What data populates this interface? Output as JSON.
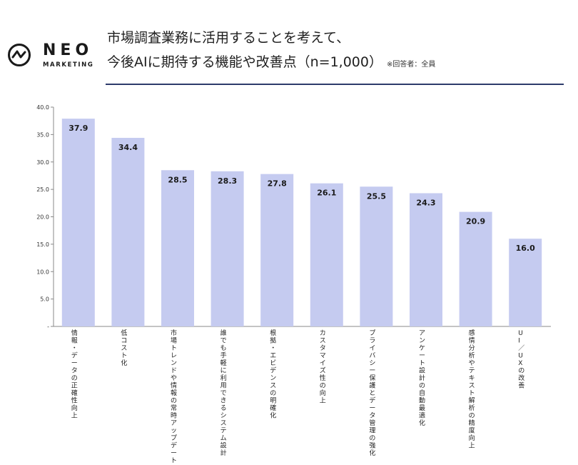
{
  "brand": {
    "name": "NEO",
    "sub": "MARKETING"
  },
  "title": {
    "line1": "市場調査業務に活用することを考えて、",
    "line2": "今後AIに期待する機能や改善点（n=1,000）",
    "note": "※回答者：全員"
  },
  "colors": {
    "bar": "#c5cbf0",
    "axis": "#888888",
    "rule": "#2e3a6b"
  },
  "chart_data": {
    "type": "bar",
    "categories": [
      "情報・データの正確性向上",
      "低コスト化",
      "市場トレンドや情報の常時アップデート",
      "誰でも手軽に利用できるシステム設計",
      "根拠・エビデンスの明確化",
      "カスタマイズ性の向上",
      "プライバシー保護とデータ管理の強化",
      "アンケート設計の自動最適化",
      "感情分析やテキスト解析の精度向上",
      "UI／UXの改善"
    ],
    "values": [
      37.9,
      34.4,
      28.5,
      28.3,
      27.8,
      26.1,
      25.5,
      24.3,
      20.9,
      16.0
    ],
    "value_labels": [
      "37.9",
      "34.4",
      "28.5",
      "28.3",
      "27.8",
      "26.1",
      "25.5",
      "24.3",
      "20.9",
      "16.0"
    ],
    "yticks": [
      "-",
      "5.0",
      "10.0",
      "15.0",
      "20.0",
      "25.0",
      "30.0",
      "35.0",
      "40.0"
    ],
    "ylim": [
      0,
      40
    ],
    "grid": false
  }
}
